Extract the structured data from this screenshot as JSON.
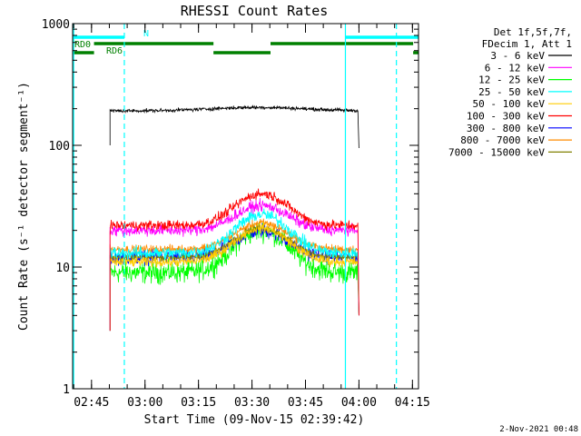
{
  "chart_data": {
    "type": "line",
    "title": "RHESSI Count Rates",
    "xlabel": "Start Time (09-Nov-15 02:39:42)",
    "ylabel": "Count Rate (s⁻¹ detector segment⁻¹)",
    "footer": "2-Nov-2021 00:48",
    "y_scale": "log",
    "ylim": [
      1,
      1000
    ],
    "y_ticks": [
      {
        "value": 1,
        "label": "1"
      },
      {
        "value": 10,
        "label": "10"
      },
      {
        "value": 100,
        "label": "100"
      },
      {
        "value": 1000,
        "label": "1000"
      }
    ],
    "x_unit": "minutes after 02:39:42",
    "xlim": [
      0,
      97
    ],
    "x_ticks": [
      {
        "value": 5.3,
        "label": "02:45"
      },
      {
        "value": 20.3,
        "label": "03:00"
      },
      {
        "value": 35.3,
        "label": "03:15"
      },
      {
        "value": 50.3,
        "label": "03:30"
      },
      {
        "value": 65.3,
        "label": "03:45"
      },
      {
        "value": 80.3,
        "label": "04:00"
      },
      {
        "value": 95.3,
        "label": "04:15"
      }
    ],
    "legend_header": [
      "Det 1f,5f,7f,",
      "FDecim 1, Att 1"
    ],
    "legend_position": "right",
    "series": [
      {
        "name": "3 - 6 keV",
        "color": "#000000",
        "kind": "flat",
        "start": 10.5,
        "end": 80.0,
        "base": 192,
        "peak": 205,
        "noise": 0.05
      },
      {
        "name": "6 - 12 keV",
        "color": "#ff00ff",
        "kind": "flare",
        "start": 10.5,
        "end": 80.0,
        "base": 20,
        "peak": 32,
        "noise": 0.16
      },
      {
        "name": "12 - 25 keV",
        "color": "#00ff00",
        "kind": "flare",
        "start": 10.5,
        "end": 80.0,
        "base": 9,
        "peak": 20,
        "noise": 0.3
      },
      {
        "name": "25 - 50 keV",
        "color": "#00ffff",
        "kind": "flare",
        "start": 10.5,
        "end": 80.0,
        "base": 13,
        "peak": 27,
        "noise": 0.18
      },
      {
        "name": "50 - 100 keV",
        "color": "#ffcc00",
        "kind": "flare",
        "start": 10.5,
        "end": 80.0,
        "base": 11,
        "peak": 21,
        "noise": 0.14
      },
      {
        "name": "100 - 300 keV",
        "color": "#ff0000",
        "kind": "flare",
        "start": 10.5,
        "end": 80.0,
        "base": 22,
        "peak": 40,
        "noise": 0.14
      },
      {
        "name": "300 - 800 keV",
        "color": "#0000ff",
        "kind": "flare",
        "start": 10.5,
        "end": 80.0,
        "base": 12,
        "peak": 20,
        "noise": 0.2
      },
      {
        "name": "800 - 7000 keV",
        "color": "#ff8c00",
        "kind": "flare",
        "start": 10.5,
        "end": 80.0,
        "base": 14,
        "peak": 23,
        "noise": 0.12
      },
      {
        "name": "7000 - 15000 keV",
        "color": "#808000",
        "kind": "flare",
        "start": 10.5,
        "end": 80.0,
        "base": 12,
        "peak": 21,
        "noise": 0.1
      }
    ],
    "event_lines": [
      {
        "x": 0.3,
        "style": "solid",
        "color": "#00ffff"
      },
      {
        "x": 14.5,
        "style": "dashed",
        "color": "#00ffff"
      },
      {
        "x": 76.5,
        "style": "solid",
        "color": "#00ffff"
      },
      {
        "x": 90.8,
        "style": "dashed",
        "color": "#00ffff"
      }
    ],
    "flag_bars": [
      {
        "label": "N",
        "color": "#00ffff",
        "level": 3,
        "segments": [
          [
            0,
            14.5
          ],
          [
            76.5,
            97
          ]
        ]
      },
      {
        "label": "RD0",
        "color": "#008000",
        "level": 2,
        "segments": [
          [
            6.0,
            39.5
          ],
          [
            55.5,
            95.5
          ]
        ]
      },
      {
        "label": "RD6",
        "color": "#008000",
        "level": 1,
        "segments": [
          [
            0,
            6.0
          ],
          [
            39.5,
            55.5
          ],
          [
            95.5,
            97
          ]
        ]
      }
    ]
  }
}
